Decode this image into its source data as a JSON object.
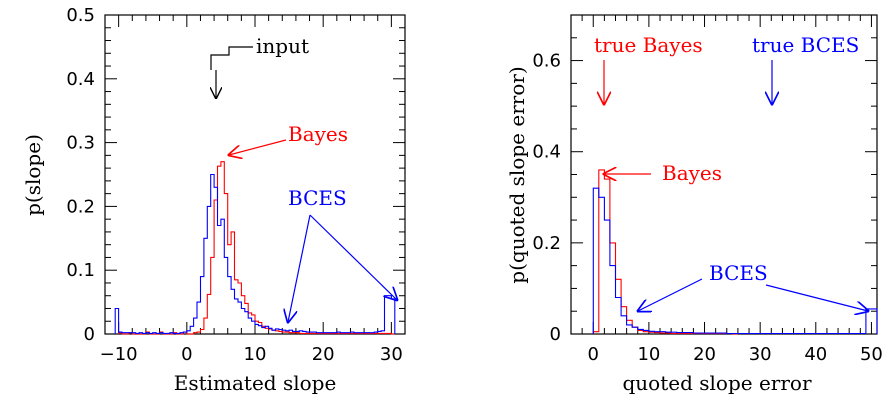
{
  "charts": [
    {
      "type": "histogram",
      "xlabel": "Estimated slope",
      "ylabel": "p(slope)",
      "xlim": [
        -12,
        32
      ],
      "ylim": [
        0,
        0.5
      ],
      "xticks": [
        -10,
        0,
        10,
        20,
        30
      ],
      "yticks": [
        0,
        0.1,
        0.2,
        0.3,
        0.4,
        0.5
      ],
      "ytick_labels": [
        "0",
        "0.1",
        "0.2",
        "0.3",
        "0.4",
        "0.5"
      ],
      "series": [
        {
          "name": "Bayes",
          "color": "#ff0000",
          "bins": [
            -10,
            -9.5,
            -9,
            -8.5,
            -8,
            -7.5,
            -7,
            -6.5,
            -6,
            -5.5,
            -5,
            -4.5,
            -4,
            -3.5,
            -3,
            -2.5,
            -2,
            -1.5,
            -1,
            -0.5,
            0,
            0.5,
            1,
            1.5,
            2,
            2.5,
            3,
            3.5,
            4,
            4.5,
            5,
            5.5,
            6,
            6.5,
            7,
            7.5,
            8,
            8.5,
            9,
            9.5,
            10,
            10.5,
            11,
            11.5,
            12,
            12.5,
            13,
            13.5,
            14,
            14.5,
            15,
            15.5,
            16,
            16.5,
            17,
            17.5,
            18,
            18.5,
            19,
            19.5,
            20,
            20.5,
            21,
            21.5,
            22,
            22.5,
            23,
            23.5,
            24,
            24.5,
            25,
            25.5,
            26,
            26.5,
            27,
            27.5,
            28,
            28.5,
            29,
            29.5,
            30
          ],
          "values": [
            0.002,
            0,
            0,
            0.002,
            0,
            0,
            0,
            0,
            0.003,
            0,
            0,
            0,
            0.003,
            0,
            0,
            0,
            0.002,
            0,
            0,
            0.003,
            0,
            0,
            0.002,
            0.003,
            0.007,
            0.025,
            0.062,
            0.12,
            0.21,
            0.263,
            0.27,
            0.22,
            0.14,
            0.16,
            0.085,
            0.08,
            0.06,
            0.048,
            0.033,
            0.03,
            0.02,
            0.018,
            0.012,
            0.009,
            0.008,
            0.006,
            0.005,
            0.004,
            0.003,
            0.003,
            0.002,
            0.002,
            0.002,
            0.001,
            0.001,
            0.001,
            0.001,
            0.001,
            0.001,
            0.001,
            0.001,
            0.001,
            0.001,
            0.001,
            0.001,
            0.001,
            0.001,
            0.001,
            0.001,
            0.001,
            0.001,
            0.001,
            0.001,
            0.001,
            0.001,
            0.001,
            0.001,
            0.001,
            0.001,
            0.001
          ]
        },
        {
          "name": "BCES",
          "color": "#0000ff",
          "bins": [
            -10.5,
            -10,
            -9.5,
            -9,
            -8.5,
            -8,
            -7.5,
            -7,
            -6.5,
            -6,
            -5.5,
            -5,
            -4.5,
            -4,
            -3.5,
            -3,
            -2.5,
            -2,
            -1.5,
            -1,
            -0.5,
            0,
            0.5,
            1,
            1.5,
            2,
            2.5,
            3,
            3.5,
            4,
            4.5,
            5,
            5.5,
            6,
            6.5,
            7,
            7.5,
            8,
            8.5,
            9,
            9.5,
            10,
            10.5,
            11,
            11.5,
            12,
            12.5,
            13,
            13.5,
            14,
            14.5,
            15,
            15.5,
            16,
            16.5,
            17,
            17.5,
            18,
            18.5,
            19,
            19.5,
            20,
            20.5,
            21,
            21.5,
            22,
            22.5,
            23,
            23.5,
            24,
            24.5,
            25,
            25.5,
            26,
            26.5,
            27,
            27.5,
            28,
            28.5,
            29,
            29.5,
            30
          ],
          "values": [
            0.04,
            0.003,
            0.002,
            0.002,
            0.002,
            0.002,
            0.001,
            0.002,
            0.001,
            0.002,
            0.001,
            0.002,
            0.001,
            0.002,
            0.001,
            0.001,
            0.002,
            0.001,
            0.001,
            0.002,
            0.003,
            0.005,
            0.012,
            0.025,
            0.05,
            0.09,
            0.15,
            0.2,
            0.25,
            0.23,
            0.17,
            0.18,
            0.12,
            0.09,
            0.07,
            0.055,
            0.05,
            0.04,
            0.035,
            0.025,
            0.02,
            0.015,
            0.013,
            0.01,
            0.012,
            0.009,
            0.006,
            0.008,
            0.007,
            0.006,
            0.005,
            0.006,
            0.004,
            0.004,
            0.005,
            0.004,
            0.003,
            0.003,
            0.003,
            0.002,
            0.002,
            0.002,
            0.002,
            0.002,
            0.002,
            0.003,
            0.002,
            0.002,
            0.002,
            0.003,
            0.002,
            0.002,
            0.002,
            0.002,
            0.002,
            0.002,
            0.003,
            0.004,
            0.005,
            0.06,
            0.06,
            0.055
          ]
        }
      ],
      "annotations": [
        {
          "text": "input",
          "color": "#000000"
        },
        {
          "text": "Bayes",
          "color": "#ff0000"
        },
        {
          "text": "BCES",
          "color": "#0000ff"
        }
      ]
    },
    {
      "type": "histogram",
      "xlabel": "quoted slope error",
      "ylabel": "p(quoted slope error)",
      "xlim": [
        -4,
        51
      ],
      "ylim": [
        0,
        0.7
      ],
      "xticks": [
        0,
        10,
        20,
        30,
        40,
        50
      ],
      "yticks": [
        0,
        0.2,
        0.4,
        0.6
      ],
      "ytick_labels": [
        "0",
        "0.2",
        "0.4",
        "0.6"
      ],
      "series": [
        {
          "name": "Bayes",
          "color": "#ff0000",
          "bins": [
            0,
            1,
            2,
            3,
            4,
            5,
            6,
            7,
            8,
            9,
            10,
            11,
            12,
            13,
            14,
            15,
            16,
            17,
            18,
            19,
            20,
            21,
            22,
            23,
            24,
            25
          ],
          "values": [
            0.005,
            0.36,
            0.34,
            0.2,
            0.12,
            0.06,
            0.03,
            0.015,
            0.008,
            0.005,
            0.004,
            0.003,
            0.002,
            0.002,
            0.001,
            0.001,
            0.001,
            0.001,
            0.001,
            0.001,
            0.001,
            0.001,
            0.001,
            0.001,
            0.001,
            0
          ]
        },
        {
          "name": "BCES",
          "color": "#0000ff",
          "bins": [
            0,
            1,
            2,
            3,
            4,
            5,
            6,
            7,
            8,
            9,
            10,
            11,
            12,
            13,
            14,
            15,
            16,
            17,
            18,
            19,
            20,
            21,
            22,
            23,
            24,
            25,
            26,
            27,
            28,
            29,
            30,
            31,
            32,
            33,
            34,
            35,
            36,
            37,
            38,
            39,
            40,
            41,
            42,
            43,
            44,
            45,
            46,
            47,
            48,
            49,
            50
          ],
          "values": [
            0.32,
            0.3,
            0.25,
            0.15,
            0.08,
            0.04,
            0.02,
            0.015,
            0.01,
            0.008,
            0.006,
            0.005,
            0.005,
            0.004,
            0.004,
            0.003,
            0.003,
            0.003,
            0.002,
            0.002,
            0.002,
            0.002,
            0.002,
            0.002,
            0.001,
            0.001,
            0.001,
            0.001,
            0.001,
            0.001,
            0.001,
            0.001,
            0.001,
            0.001,
            0.001,
            0.001,
            0.001,
            0.001,
            0.001,
            0.001,
            0.001,
            0.001,
            0.001,
            0.001,
            0.001,
            0.001,
            0.001,
            0.001,
            0.001,
            0.055,
            0.055
          ]
        }
      ],
      "annotations": [
        {
          "text": "true Bayes",
          "color": "#ff0000"
        },
        {
          "text": "true BCES",
          "color": "#0000ff"
        },
        {
          "text": "Bayes",
          "color": "#ff0000"
        },
        {
          "text": "BCES",
          "color": "#0000ff"
        }
      ]
    }
  ]
}
